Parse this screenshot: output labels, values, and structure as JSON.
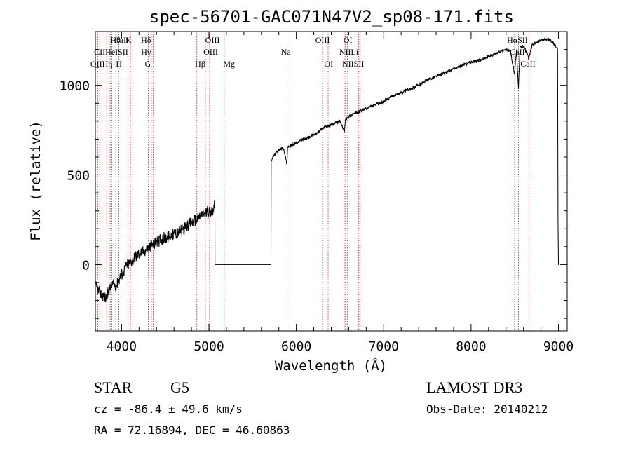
{
  "chart_data": {
    "type": "line",
    "title": "spec-56701-GAC071N47V2_sp08-171.fits",
    "xlabel": "Wavelength (Å)",
    "ylabel": "Flux (relative)",
    "xlim": [
      3700,
      9100
    ],
    "ylim": [
      -370,
      1300
    ],
    "xticks": [
      4000,
      5000,
      6000,
      7000,
      8000,
      9000
    ],
    "xtick_labels": [
      "4000",
      "5000",
      "6000",
      "7000",
      "8000",
      "9000"
    ],
    "yticks": [
      0,
      500,
      1000
    ],
    "ytick_labels": [
      "0",
      "500",
      "1000"
    ],
    "series": [
      {
        "name": "flux",
        "x": [
          3700,
          3740,
          3780,
          3820,
          3860,
          3900,
          3940,
          3980,
          4020,
          4060,
          4100,
          4150,
          4200,
          4250,
          4300,
          4350,
          4400,
          4450,
          4500,
          4550,
          4600,
          4650,
          4700,
          4750,
          4800,
          4850,
          4900,
          4950,
          5000,
          5050,
          5068,
          5070,
          5710,
          5712,
          5730,
          5760,
          5800,
          5850,
          5893,
          5900,
          5950,
          6000,
          6050,
          6100,
          6150,
          6200,
          6250,
          6300,
          6350,
          6400,
          6450,
          6500,
          6550,
          6563,
          6580,
          6650,
          6700,
          6750,
          6800,
          6900,
          7000,
          7100,
          7200,
          7300,
          7400,
          7500,
          7600,
          7700,
          7800,
          7900,
          8000,
          8100,
          8200,
          8300,
          8400,
          8450,
          8498,
          8520,
          8542,
          8560,
          8600,
          8662,
          8700,
          8750,
          8800,
          8850,
          8900,
          8950,
          8990,
          8995,
          9000,
          9005
        ],
        "y": [
          -120,
          -150,
          -170,
          -190,
          -140,
          -110,
          -120,
          -70,
          -40,
          0,
          10,
          40,
          60,
          75,
          90,
          110,
          125,
          140,
          150,
          160,
          170,
          180,
          195,
          215,
          235,
          250,
          270,
          285,
          295,
          310,
          330,
          0,
          0,
          580,
          600,
          620,
          640,
          650,
          560,
          655,
          665,
          680,
          695,
          700,
          710,
          725,
          740,
          760,
          770,
          780,
          790,
          800,
          740,
          810,
          820,
          840,
          850,
          860,
          870,
          890,
          910,
          940,
          960,
          980,
          1000,
          1030,
          1050,
          1070,
          1090,
          1110,
          1130,
          1140,
          1160,
          1180,
          1200,
          1190,
          1060,
          1200,
          980,
          1210,
          1220,
          1150,
          1230,
          1240,
          1250,
          1260,
          1255,
          1230,
          1200,
          250,
          0,
          0
        ]
      }
    ],
    "lines": [
      {
        "wavelength": 3727,
        "labels": [
          "OII"
        ]
      },
      {
        "wavelength": 3750,
        "labels": [
          "Hθ"
        ]
      },
      {
        "wavelength": 3775,
        "labels": [
          "CII"
        ]
      },
      {
        "wavelength": 3830,
        "labels": [
          "Hη"
        ]
      },
      {
        "wavelength": 3869,
        "labels": [
          "NeIII"
        ]
      },
      {
        "wavelength": 3889,
        "labels": [
          "HeI"
        ]
      },
      {
        "wavelength": 3934,
        "labels": [
          "K"
        ]
      },
      {
        "wavelength": 3969,
        "labels": [
          "H"
        ]
      },
      {
        "wavelength": 4072,
        "labels": [
          "SII"
        ]
      },
      {
        "wavelength": 4102,
        "labels": [
          "Hδ"
        ]
      },
      {
        "wavelength": 4305,
        "labels": [
          "G"
        ]
      },
      {
        "wavelength": 4341,
        "labels": [
          "Hγ"
        ]
      },
      {
        "wavelength": 4363,
        "labels": [
          "OIII"
        ]
      },
      {
        "wavelength": 4861,
        "labels": [
          "Hβ"
        ]
      },
      {
        "wavelength": 4959,
        "labels": [
          "OIII"
        ]
      },
      {
        "wavelength": 5007,
        "labels": [
          "OIII"
        ]
      },
      {
        "wavelength": 5175,
        "labels": [
          "Mg"
        ]
      },
      {
        "wavelength": 5894,
        "labels": [
          "Na"
        ]
      },
      {
        "wavelength": 6300,
        "labels": [
          "OI"
        ]
      },
      {
        "wavelength": 6364,
        "labels": [
          "OI"
        ]
      },
      {
        "wavelength": 6548,
        "labels": [
          "NII"
        ]
      },
      {
        "wavelength": 6563,
        "labels": [
          "Hα"
        ]
      },
      {
        "wavelength": 6583,
        "labels": [
          "NII"
        ]
      },
      {
        "wavelength": 6707,
        "labels": [
          "Li"
        ]
      },
      {
        "wavelength": 6716,
        "labels": [
          "SII"
        ]
      },
      {
        "wavelength": 6731,
        "labels": [
          "SII"
        ]
      },
      {
        "wavelength": 8498,
        "labels": [
          "CaII"
        ]
      },
      {
        "wavelength": 8542,
        "labels": [
          "CaII"
        ]
      },
      {
        "wavelength": 8662,
        "labels": [
          "CaII"
        ]
      }
    ],
    "line_label_rows": [
      [
        "Hθ",
        "K",
        "Hδ",
        "OIII",
        "OIII",
        "OI",
        "HαSII",
        "CaII"
      ],
      [
        "CIIHeISII",
        "Hγ",
        "OIII",
        "Na",
        "NIILi",
        "CaII"
      ],
      [
        "OIIHη",
        "H",
        "G",
        "Hβ",
        "Mg",
        "OI",
        "NIISII",
        "CaII"
      ]
    ]
  },
  "info": {
    "class_label": "STAR",
    "subclass": "G5",
    "survey": "LAMOST DR3",
    "cz": "cz = -86.4 ± 49.6 km/s",
    "obs_date": "Obs-Date: 20140212",
    "coords": "RA =  72.16894, DEC =  46.60863"
  }
}
